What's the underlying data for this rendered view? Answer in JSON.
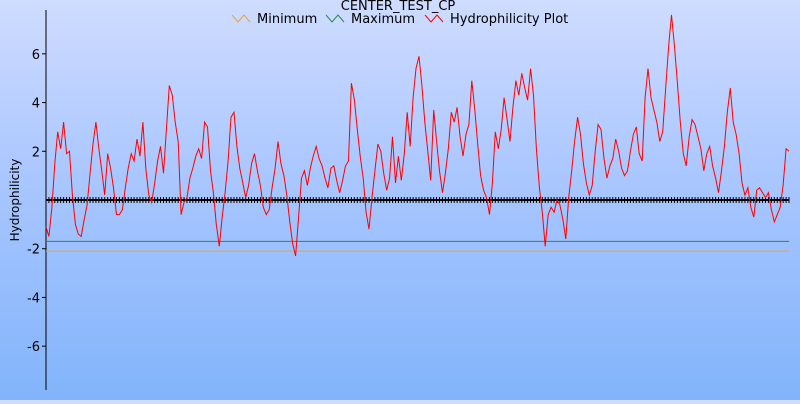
{
  "chart_data": {
    "type": "line",
    "title": "CENTER_TEST_CP",
    "ylabel": "Hydrophilicity",
    "xlabel": "",
    "ylim": [
      -7.8,
      7.8
    ],
    "yticks": [
      -6,
      -4,
      -2,
      2,
      4,
      6
    ],
    "grid": false,
    "legend_position": "top",
    "series": [
      {
        "name": "Minimum",
        "color": "#e8a33a",
        "values": [
          -2.1
        ]
      },
      {
        "name": "Maximum",
        "color": "#2a8a4a",
        "values": [
          -1.7
        ]
      },
      {
        "name": "Hydrophilicity Plot",
        "color": "#ff0000",
        "values": [
          -1.1,
          -1.5,
          -0.3,
          1.5,
          2.8,
          2.1,
          3.2,
          1.9,
          2.0,
          0.2,
          -1.0,
          -1.4,
          -1.5,
          -0.8,
          -0.2,
          1.1,
          2.3,
          3.2,
          2.1,
          1.2,
          0.2,
          1.9,
          1.3,
          0.5,
          -0.6,
          -0.6,
          -0.4,
          0.5,
          1.3,
          1.9,
          1.6,
          2.5,
          1.8,
          3.2,
          1.3,
          0.2,
          -0.1,
          0.7,
          1.6,
          2.2,
          1.1,
          2.9,
          4.7,
          4.3,
          3.2,
          2.4,
          -0.6,
          -0.1,
          0.1,
          0.9,
          1.3,
          1.8,
          2.1,
          1.7,
          3.2,
          3.0,
          1.2,
          0.3,
          -1.0,
          -1.9,
          -0.7,
          0.3,
          1.6,
          3.4,
          3.6,
          2.2,
          1.3,
          0.7,
          0.1,
          0.6,
          1.5,
          1.9,
          1.2,
          0.6,
          -0.3,
          -0.6,
          -0.4,
          0.5,
          1.3,
          2.4,
          1.5,
          1.0,
          0.2,
          -0.9,
          -1.8,
          -2.3,
          -0.7,
          0.9,
          1.2,
          0.6,
          1.3,
          1.8,
          2.2,
          1.7,
          1.4,
          0.9,
          0.5,
          1.3,
          1.4,
          0.8,
          0.3,
          0.8,
          1.4,
          1.6,
          4.8,
          4.1,
          2.9,
          1.8,
          0.9,
          -0.5,
          -1.2,
          0.1,
          1.2,
          2.3,
          2.0,
          1.1,
          0.4,
          0.9,
          2.6,
          0.7,
          1.8,
          0.8,
          1.9,
          3.6,
          2.2,
          4.2,
          5.4,
          5.9,
          4.7,
          3.2,
          2.0,
          0.8,
          3.7,
          2.4,
          1.2,
          0.3,
          1.1,
          2.1,
          3.6,
          3.2,
          3.8,
          2.6,
          1.8,
          2.7,
          3.1,
          4.9,
          3.7,
          2.3,
          1.0,
          0.4,
          0.1,
          -0.6,
          0.7,
          2.8,
          2.1,
          2.9,
          4.2,
          3.3,
          2.4,
          3.8,
          4.9,
          4.3,
          5.2,
          4.6,
          4.1,
          5.4,
          4.3,
          2.1,
          0.5,
          -0.5,
          -1.9,
          -0.6,
          -0.3,
          -0.5,
          0.0,
          -0.2,
          -0.8,
          -1.6,
          0.1,
          1.2,
          2.4,
          3.4,
          2.7,
          1.5,
          0.7,
          0.2,
          0.6,
          2.0,
          3.1,
          2.9,
          1.7,
          0.9,
          1.4,
          1.7,
          2.5,
          2.0,
          1.3,
          1.0,
          1.2,
          2.0,
          2.7,
          3.0,
          1.9,
          1.6,
          4.2,
          5.4,
          4.2,
          3.7,
          3.2,
          2.4,
          2.8,
          4.6,
          6.3,
          7.6,
          6.3,
          4.8,
          3.2,
          1.9,
          1.4,
          2.6,
          3.3,
          3.1,
          2.6,
          2.1,
          1.2,
          1.9,
          2.2,
          1.4,
          0.9,
          0.3,
          1.2,
          2.2,
          3.6,
          4.6,
          3.2,
          2.7,
          1.9,
          0.7,
          0.2,
          0.5,
          -0.3,
          -0.7,
          0.4,
          0.5,
          0.3,
          0.1,
          0.3,
          -0.4,
          -0.9,
          -0.6,
          -0.3,
          0.6,
          2.1,
          2.0
        ]
      }
    ],
    "reference_values": [
      0,
      0
    ]
  }
}
